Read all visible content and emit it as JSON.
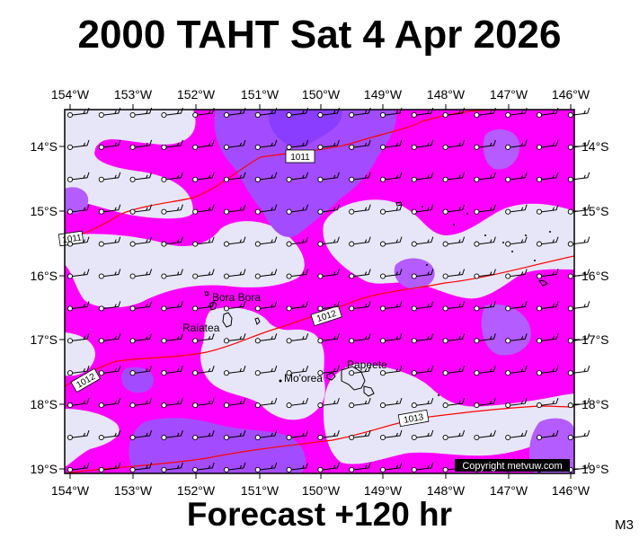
{
  "title": "2000 TAHT Sat 4 Apr 2026",
  "footer": "Forecast +120 hr",
  "code": "M3",
  "copyright": "Copyright metvuw.com",
  "lon_labels": [
    "154°W",
    "153°W",
    "152°W",
    "151°W",
    "150°W",
    "149°W",
    "148°W",
    "147°W",
    "146°W"
  ],
  "lat_labels": [
    "14°S",
    "15°S",
    "16°S",
    "17°S",
    "18°S",
    "19°S"
  ],
  "places": [
    "Bora Bora",
    "Raiatea",
    "Papeete",
    "Mo'orea"
  ],
  "isobars": [
    "1011",
    "1011",
    "1012",
    "1012",
    "1013"
  ],
  "colors": {
    "light": "#e6e6f8",
    "magenta": "#ff00ff",
    "violet": "#b33cff",
    "deep": "#8a3cff",
    "isobar": "#ff0000"
  }
}
